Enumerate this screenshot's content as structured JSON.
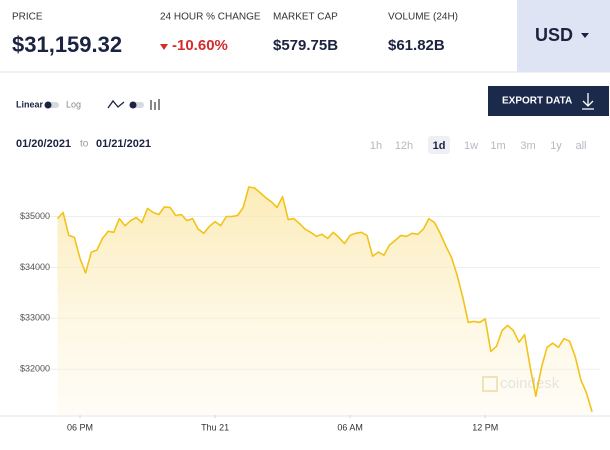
{
  "stats": [
    {
      "label": "PRICE",
      "value": "$31,159.32"
    },
    {
      "label": "24 HOUR % CHANGE",
      "value": "-10.60%"
    },
    {
      "label": "MARKET CAP",
      "value": "$579.75B"
    },
    {
      "label": "VOLUME (24H)",
      "value": "$61.82B"
    }
  ],
  "currency": "USD",
  "scale_toggle": {
    "linear": "Linear",
    "log": "Log"
  },
  "export": "EXPORT DATA",
  "date_range": {
    "from": "01/20/2021",
    "to_word": "to",
    "to": "01/21/2021"
  },
  "ranges": [
    "1h",
    "12h",
    "1d",
    "1w",
    "1m",
    "3m",
    "1y",
    "all"
  ],
  "active_range_index": 2,
  "watermark": "coindesk",
  "chart_data": {
    "type": "line",
    "x": [
      17,
      17.25,
      17.5,
      17.75,
      18,
      18.25,
      18.5,
      18.75,
      19,
      19.25,
      19.5,
      19.75,
      20,
      20.25,
      20.5,
      20.75,
      21,
      21.25,
      21.5,
      21.75,
      22,
      22.25,
      22.5,
      22.75,
      23,
      23.25,
      23.5,
      23.75,
      24,
      24.25,
      24.5,
      24.75,
      25,
      25.25,
      25.5,
      25.75,
      26,
      26.25,
      26.5,
      26.75,
      27,
      27.25,
      27.5,
      27.75,
      28,
      28.25,
      28.5,
      28.75,
      29,
      29.25,
      29.5,
      29.75,
      30,
      30.25,
      30.5,
      30.75,
      31,
      31.25,
      31.5,
      31.75,
      32,
      32.25,
      32.5,
      32.75,
      33,
      33.25,
      33.5,
      33.75,
      34,
      34.25,
      34.5,
      34.75,
      35,
      35.25,
      35.5,
      35.75,
      36,
      36.25,
      36.5,
      36.75,
      37,
      37.25,
      37.5,
      37.75,
      38,
      38.25,
      38.5,
      38.75,
      39,
      39.25,
      39.5,
      39.75,
      40,
      40.25,
      40.5,
      40.75
    ],
    "series": [
      {
        "color": "#f2c318",
        "values": [
          34960,
          35080,
          34630,
          34590,
          34180,
          33890,
          34300,
          34340,
          34570,
          34710,
          34690,
          34960,
          34820,
          34920,
          34980,
          34880,
          35160,
          35080,
          35040,
          35190,
          35180,
          35020,
          35040,
          34920,
          34960,
          34750,
          34670,
          34810,
          34900,
          34820,
          35000,
          35000,
          35020,
          35180,
          35580,
          35560,
          35470,
          35370,
          35290,
          35180,
          35390,
          34940,
          34960,
          34860,
          34750,
          34690,
          34610,
          34650,
          34570,
          34690,
          34590,
          34470,
          34630,
          34670,
          34690,
          34630,
          34220,
          34300,
          34240,
          34440,
          34530,
          34630,
          34610,
          34670,
          34650,
          34750,
          34960,
          34880,
          34670,
          34420,
          34200,
          33850,
          33420,
          32920,
          32940,
          32920,
          32990,
          32350,
          32450,
          32760,
          32860,
          32760,
          32530,
          32680,
          32040,
          31470,
          32040,
          32430,
          32510,
          32430,
          32600,
          32550,
          32250,
          31790,
          31530,
          31160
        ]
      }
    ],
    "xlim": [
      16,
      41.1
    ],
    "xticks": [
      {
        "value": 18,
        "label": "06 PM"
      },
      {
        "value": 24,
        "label": "Thu 21"
      },
      {
        "value": 30,
        "label": "06 AM"
      },
      {
        "value": 36,
        "label": "12 PM"
      }
    ],
    "ylim": [
      31100,
      36150
    ],
    "yticks": [
      {
        "value": 32000,
        "label": "$32000"
      },
      {
        "value": 33000,
        "label": "$33000"
      },
      {
        "value": 34000,
        "label": "$34000"
      },
      {
        "value": 35000,
        "label": "$35000"
      }
    ],
    "grid": true
  }
}
